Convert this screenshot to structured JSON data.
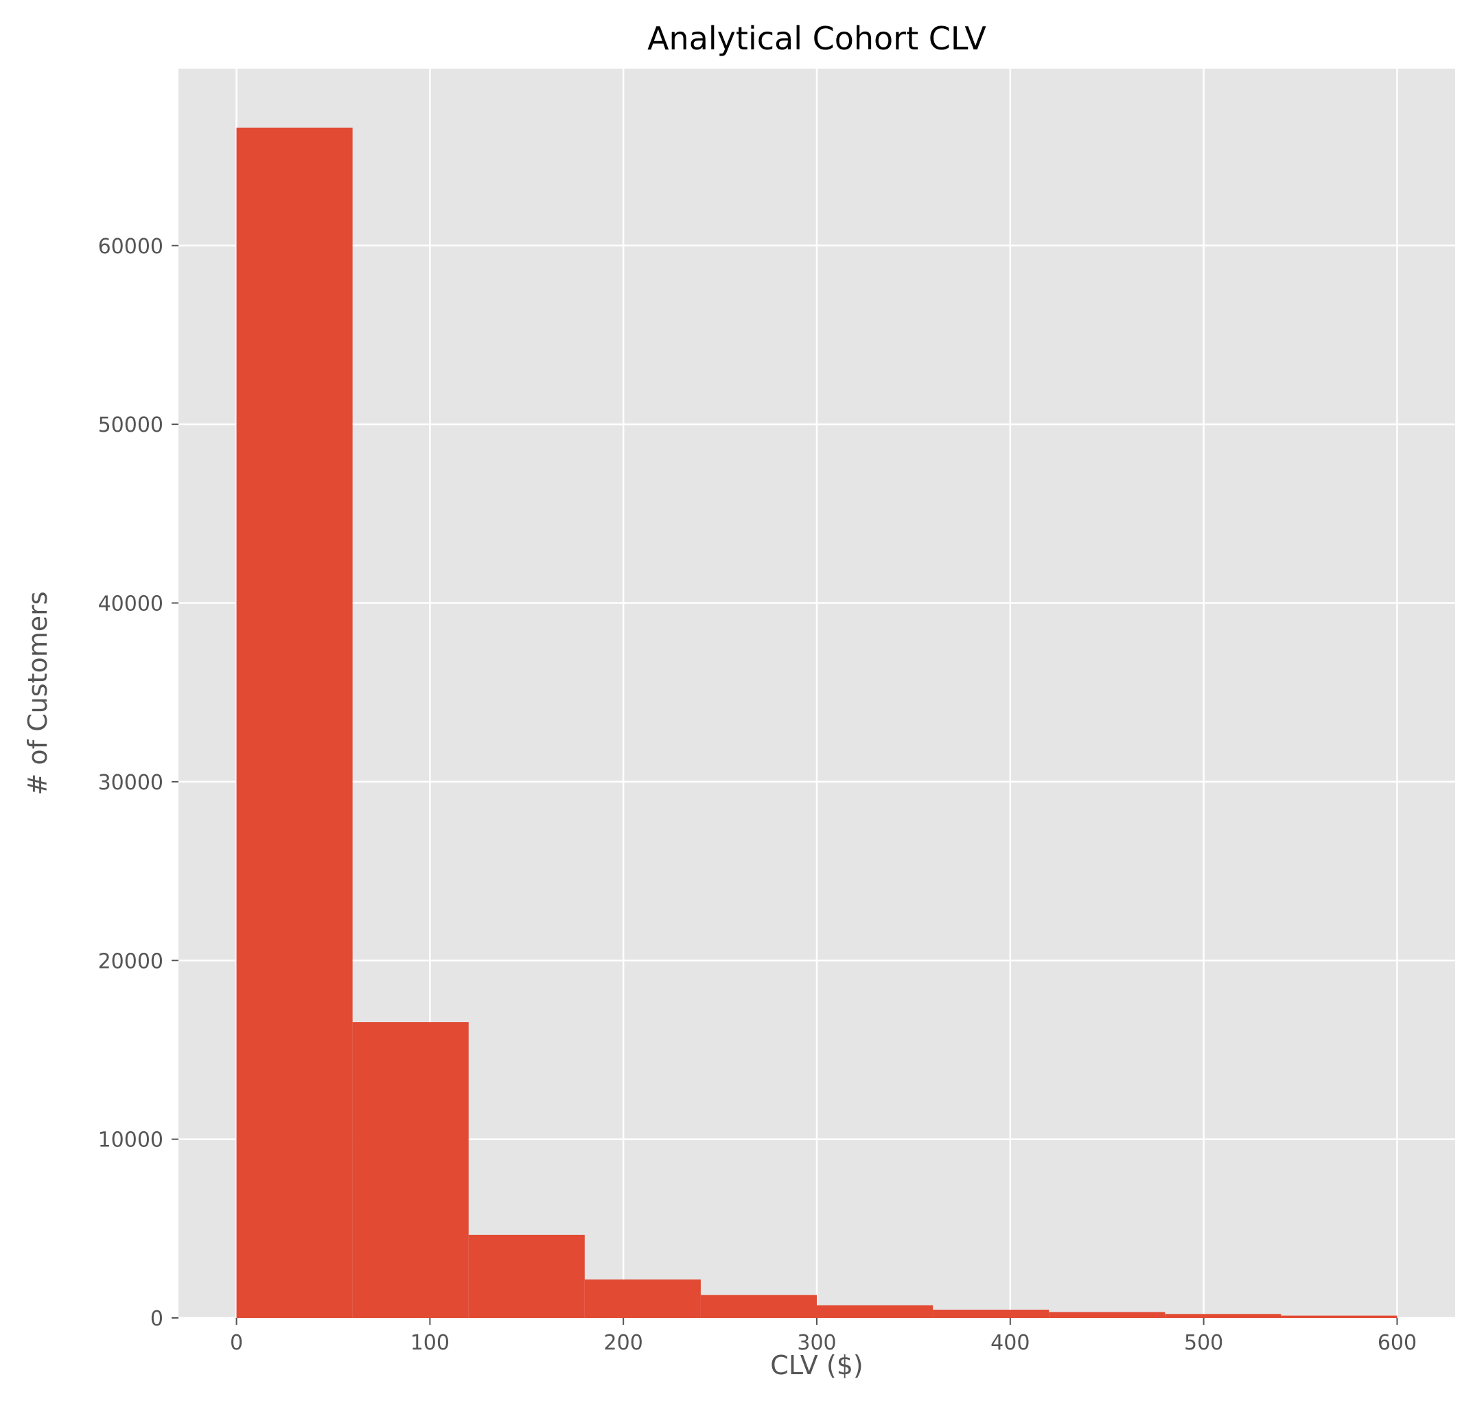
{
  "chart_data": {
    "type": "bar",
    "title": "Analytical Cohort CLV",
    "xlabel": "CLV ($)",
    "ylabel": "# of Customers",
    "bin_edges": [
      0,
      60,
      120,
      180,
      240,
      300,
      360,
      420,
      480,
      540,
      600
    ],
    "values": [
      66600,
      16550,
      4650,
      2150,
      1280,
      710,
      460,
      330,
      220,
      130
    ],
    "xlim": [
      -30,
      630
    ],
    "ylim": [
      0,
      69900
    ],
    "xticks": [
      0,
      100,
      200,
      300,
      400,
      500,
      600
    ],
    "yticks": [
      0,
      10000,
      20000,
      30000,
      40000,
      50000,
      60000
    ],
    "grid": true,
    "colors": {
      "bar": "#e24a33",
      "background": "#e5e5e5",
      "grid": "#ffffff",
      "text": "#555555",
      "title": "#000000"
    }
  }
}
